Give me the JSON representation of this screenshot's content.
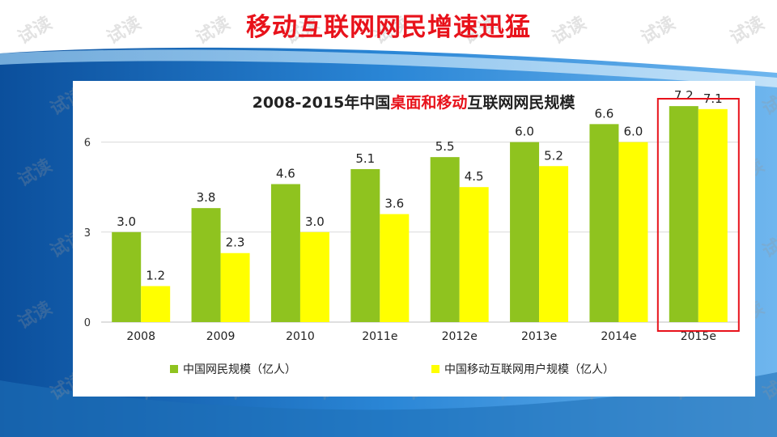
{
  "slide": {
    "title": "移动互联网网民增速迅猛",
    "watermark_text": "试读"
  },
  "colors": {
    "title": "#e8121b",
    "series_1": "#8fc31f",
    "series_2": "#ffff00",
    "highlight_box": "#e8121b",
    "chart_title_highlight": "#e8121b",
    "background_blue": "#1e6fb8"
  },
  "chart_data": {
    "type": "bar",
    "title_parts": [
      {
        "text": "2008-2015年中国",
        "highlight": false
      },
      {
        "text": "桌面和移动",
        "highlight": true
      },
      {
        "text": "互联网网民规模",
        "highlight": false
      }
    ],
    "categories": [
      "2008",
      "2009",
      "2010",
      "2011e",
      "2012e",
      "2013e",
      "2014e",
      "2015e"
    ],
    "series": [
      {
        "name": "中国网民规模（亿人）",
        "values": [
          3.0,
          3.8,
          4.6,
          5.1,
          5.5,
          6.0,
          6.6,
          7.2
        ],
        "labels": [
          "3.0",
          "3.8",
          "4.6",
          "5.1",
          "5.5",
          "6.0",
          "6.6",
          "7.2"
        ]
      },
      {
        "name": "中国移动互联网用户规模（亿人）",
        "values": [
          1.2,
          2.3,
          3.0,
          3.6,
          4.5,
          5.2,
          6.0,
          7.1
        ],
        "labels": [
          "1.2",
          "2.3",
          "3.0",
          "3.6",
          "4.5",
          "5.2",
          "6.0",
          "7.1"
        ]
      }
    ],
    "yticks": [
      "0",
      "3",
      "6"
    ],
    "ytick_values": [
      0,
      3,
      6
    ],
    "ylim": [
      0,
      7.5
    ],
    "grid": true,
    "highlighted_category": "2015e",
    "legend_position": "bottom"
  }
}
